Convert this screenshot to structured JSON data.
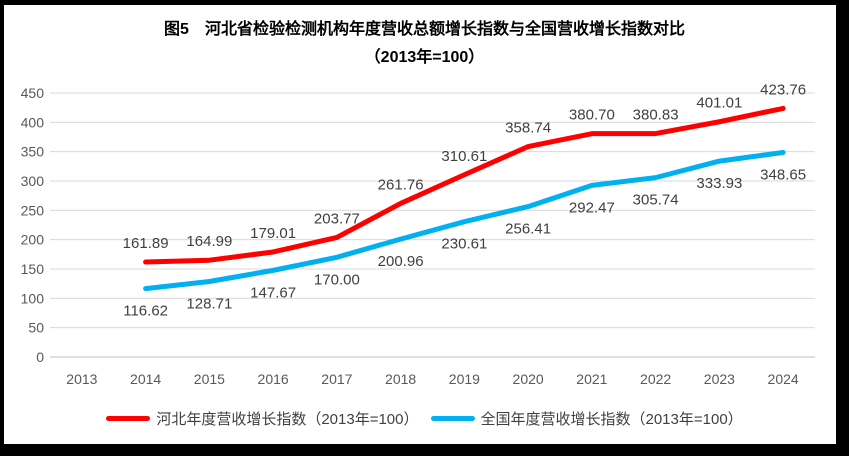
{
  "chart_data": {
    "type": "line",
    "title": "图5　河北省检验检测机构年度营收总额增长指数与全国营收增长指数对比",
    "subtitle": "（2013年=100）",
    "x": [
      "2013",
      "2014",
      "2015",
      "2016",
      "2017",
      "2018",
      "2019",
      "2020",
      "2021",
      "2022",
      "2023",
      "2024"
    ],
    "ylim": [
      0,
      450
    ],
    "ytick_step": 50,
    "yticks": [
      0,
      50,
      100,
      150,
      200,
      250,
      300,
      350,
      400,
      450
    ],
    "grid": "horizontal-only",
    "legend_position": "bottom",
    "colors": {
      "grid": "#d9d9d9",
      "baseline": "#bfbfbf",
      "axis_text": "#595959",
      "data_label_text": "#404040"
    },
    "series": [
      {
        "id": "hebei",
        "name": "河北年度营收增长指数（2013年=100）",
        "color": "#ff0000",
        "first_x": "2014",
        "label_position": "above",
        "values": [
          161.89,
          164.99,
          179.01,
          203.77,
          261.76,
          310.61,
          358.74,
          380.7,
          380.83,
          401.01,
          423.76
        ]
      },
      {
        "id": "national",
        "name": "全国年度营收增长指数（2013年=100）",
        "color": "#00b0f0",
        "first_x": "2014",
        "label_position": "below",
        "values": [
          116.62,
          128.71,
          147.67,
          170.0,
          200.96,
          230.61,
          256.41,
          292.47,
          305.74,
          333.93,
          348.65
        ]
      }
    ]
  }
}
